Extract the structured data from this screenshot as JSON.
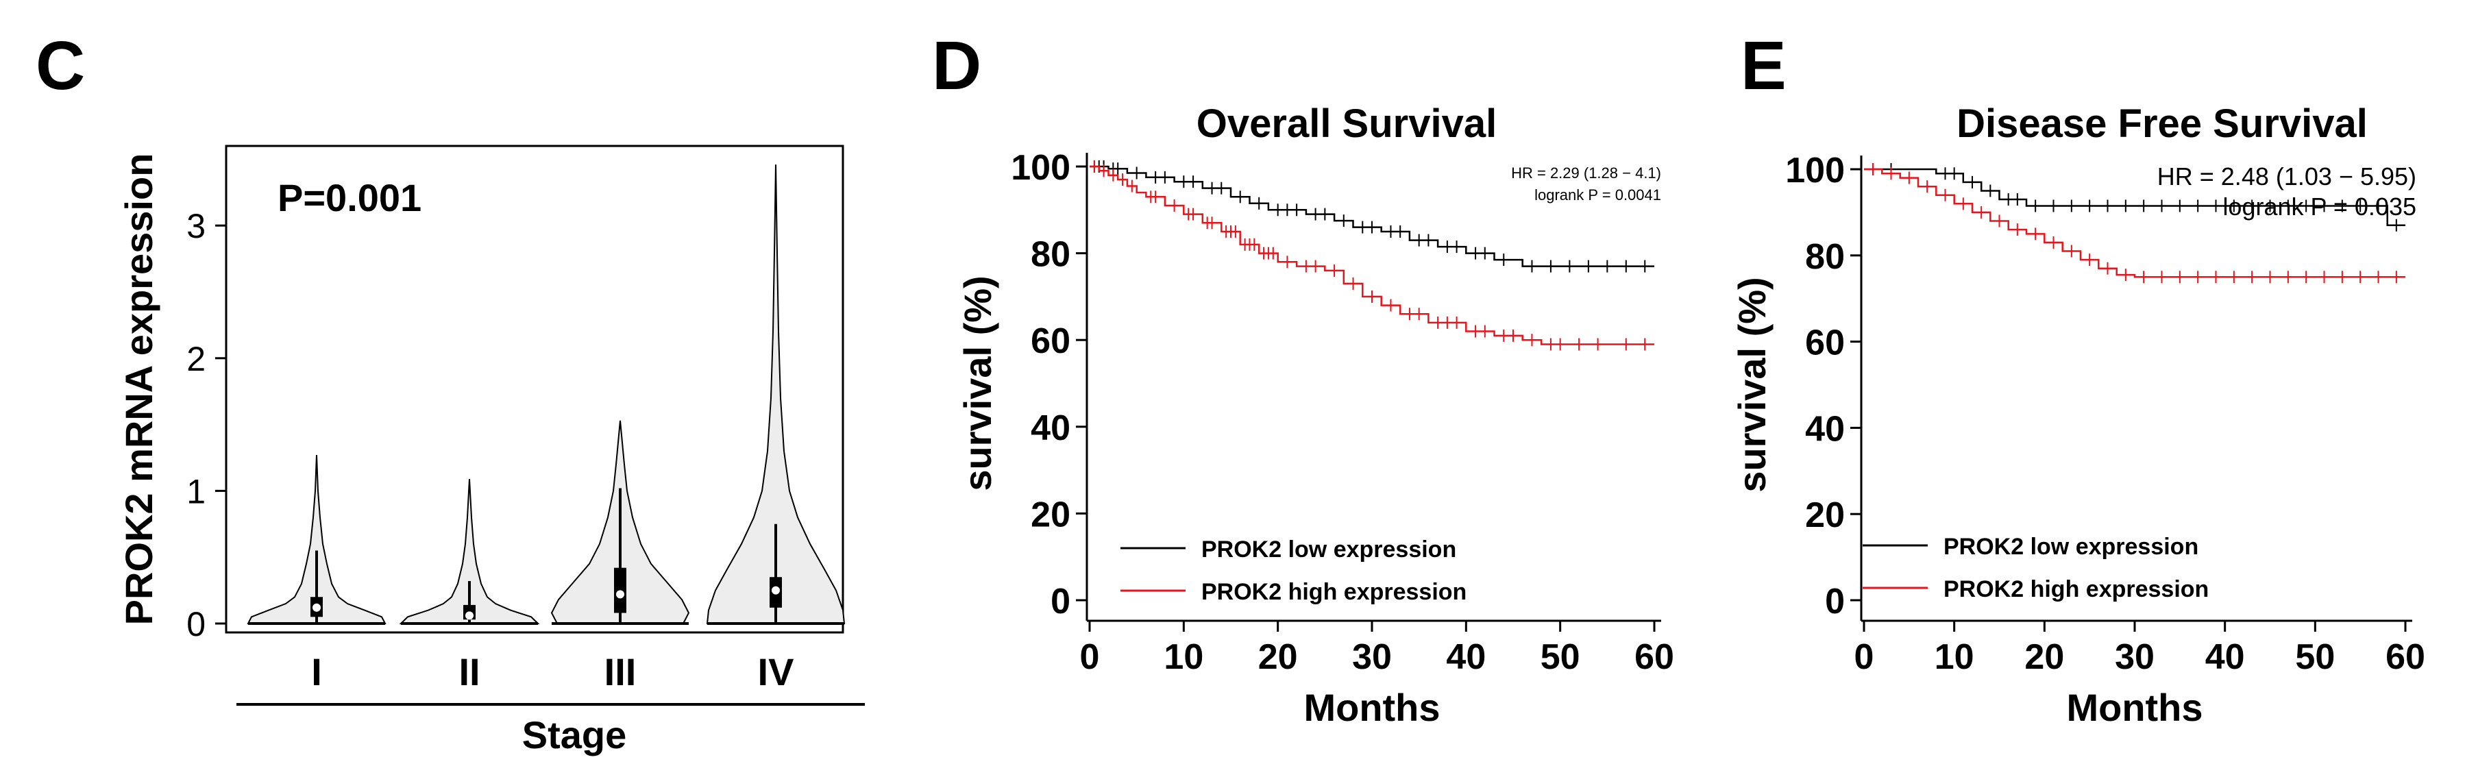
{
  "chart_data": [
    {
      "panel": "C",
      "type": "violin",
      "title": "",
      "annotation": "P=0.001",
      "ylabel": "PROK2 mRNA expression",
      "xlabel": "Stage",
      "ylim": [
        0,
        3.6
      ],
      "yticks": [
        "0",
        "1",
        "2",
        "3"
      ],
      "ytick_values": [
        0,
        1,
        2,
        3
      ],
      "categories": [
        "I",
        "II",
        "III",
        "IV"
      ],
      "violins": [
        {
          "stage": "I",
          "min": 0,
          "max": 1.27,
          "q1": 0.05,
          "median": 0.12,
          "q3": 0.2,
          "whisker_low": 0,
          "whisker_high": 0.55,
          "density": [
            [
              0,
              1.0
            ],
            [
              0.05,
              0.95
            ],
            [
              0.1,
              0.7
            ],
            [
              0.15,
              0.45
            ],
            [
              0.2,
              0.32
            ],
            [
              0.3,
              0.22
            ],
            [
              0.45,
              0.15
            ],
            [
              0.6,
              0.09
            ],
            [
              0.8,
              0.05
            ],
            [
              1.0,
              0.02
            ],
            [
              1.27,
              0
            ]
          ]
        },
        {
          "stage": "II",
          "min": 0,
          "max": 1.09,
          "q1": 0.03,
          "median": 0.06,
          "q3": 0.14,
          "whisker_low": 0,
          "whisker_high": 0.32,
          "density": [
            [
              0,
              1.0
            ],
            [
              0.05,
              0.9
            ],
            [
              0.1,
              0.6
            ],
            [
              0.15,
              0.38
            ],
            [
              0.2,
              0.26
            ],
            [
              0.3,
              0.17
            ],
            [
              0.45,
              0.1
            ],
            [
              0.6,
              0.06
            ],
            [
              0.8,
              0.03
            ],
            [
              1.09,
              0
            ]
          ]
        },
        {
          "stage": "III",
          "min": 0,
          "max": 1.53,
          "q1": 0.08,
          "median": 0.22,
          "q3": 0.42,
          "whisker_low": 0,
          "whisker_high": 1.02,
          "density": [
            [
              0,
              0.92
            ],
            [
              0.08,
              1.0
            ],
            [
              0.18,
              0.9
            ],
            [
              0.3,
              0.7
            ],
            [
              0.45,
              0.45
            ],
            [
              0.6,
              0.3
            ],
            [
              0.8,
              0.18
            ],
            [
              1.0,
              0.1
            ],
            [
              1.2,
              0.06
            ],
            [
              1.53,
              0
            ]
          ]
        },
        {
          "stage": "IV",
          "min": 0,
          "max": 3.46,
          "q1": 0.12,
          "median": 0.25,
          "q3": 0.35,
          "whisker_low": 0,
          "whisker_high": 0.75,
          "density": [
            [
              0,
              1.0
            ],
            [
              0.1,
              0.98
            ],
            [
              0.25,
              0.88
            ],
            [
              0.4,
              0.72
            ],
            [
              0.6,
              0.5
            ],
            [
              0.8,
              0.32
            ],
            [
              1.0,
              0.2
            ],
            [
              1.3,
              0.12
            ],
            [
              1.7,
              0.07
            ],
            [
              2.2,
              0.04
            ],
            [
              2.8,
              0.02
            ],
            [
              3.46,
              0
            ]
          ]
        }
      ]
    },
    {
      "panel": "D",
      "type": "kaplan-meier",
      "title": "Overall Survival",
      "xlabel": "Months",
      "ylabel": "survival (%)",
      "xlim": [
        0,
        60
      ],
      "ylim": [
        0,
        100
      ],
      "xticks": [
        "0",
        "10",
        "20",
        "30",
        "40",
        "50",
        "60"
      ],
      "xtick_values": [
        0,
        10,
        20,
        30,
        40,
        50,
        60
      ],
      "yticks": [
        "0",
        "20",
        "40",
        "60",
        "80",
        "100"
      ],
      "ytick_values": [
        0,
        20,
        40,
        60,
        80,
        100
      ],
      "hr_text": "HR = 2.29 (1.28 − 4.1)",
      "p_text": "logrank P = 0.0041",
      "series": [
        {
          "name": "PROK2 low expression",
          "color": "#000000",
          "steps": [
            [
              0,
              100
            ],
            [
              2,
              99.5
            ],
            [
              4,
              98.5
            ],
            [
              6,
              97.5
            ],
            [
              9,
              96.5
            ],
            [
              12,
              95
            ],
            [
              15,
              93
            ],
            [
              17,
              91.5
            ],
            [
              19,
              90
            ],
            [
              23,
              89
            ],
            [
              26,
              87.5
            ],
            [
              28,
              86
            ],
            [
              31,
              85
            ],
            [
              34,
              83
            ],
            [
              37,
              81.5
            ],
            [
              40,
              80
            ],
            [
              43,
              78.5
            ],
            [
              46,
              77
            ],
            [
              60,
              77
            ]
          ],
          "censors": [
            0.5,
            1,
            1.5,
            2.5,
            3,
            5,
            7,
            8,
            10,
            11,
            13,
            14,
            16,
            18,
            20,
            21,
            22,
            24,
            25,
            27,
            29,
            30,
            32,
            33,
            35,
            36,
            38,
            39,
            41,
            42,
            44,
            47,
            49,
            51,
            53,
            55,
            57,
            59
          ]
        },
        {
          "name": "PROK2 high expression",
          "color": "#e8141c",
          "steps": [
            [
              0,
              100
            ],
            [
              1,
              99
            ],
            [
              2,
              98
            ],
            [
              3,
              97
            ],
            [
              4,
              95.5
            ],
            [
              5,
              94
            ],
            [
              6,
              93
            ],
            [
              8,
              91
            ],
            [
              10,
              89
            ],
            [
              12,
              87
            ],
            [
              14,
              85
            ],
            [
              16,
              82
            ],
            [
              18,
              80
            ],
            [
              20,
              78
            ],
            [
              22,
              77
            ],
            [
              25,
              76
            ],
            [
              27,
              73
            ],
            [
              29,
              70
            ],
            [
              31,
              68
            ],
            [
              33,
              66
            ],
            [
              36,
              64
            ],
            [
              40,
              62
            ],
            [
              43,
              61
            ],
            [
              46,
              60
            ],
            [
              48,
              59
            ],
            [
              60,
              59
            ]
          ],
          "censors": [
            0.5,
            1.5,
            2.5,
            3.5,
            4.5,
            6.5,
            7,
            9,
            10.5,
            11,
            12.5,
            13,
            14.5,
            15,
            15.5,
            16.5,
            17,
            17.5,
            18.5,
            19,
            19.5,
            21,
            23,
            24,
            26,
            28,
            30,
            32,
            34,
            35,
            37,
            38,
            39,
            41,
            42,
            44,
            45,
            47,
            49,
            50,
            52,
            54,
            57,
            59
          ]
        }
      ]
    },
    {
      "panel": "E",
      "type": "kaplan-meier",
      "title": "Disease Free Survival",
      "xlabel": "Months",
      "ylabel": "survival (%)",
      "xlim": [
        0,
        60
      ],
      "ylim": [
        0,
        100
      ],
      "xticks": [
        "0",
        "10",
        "20",
        "30",
        "40",
        "50",
        "60"
      ],
      "xtick_values": [
        0,
        10,
        20,
        30,
        40,
        50,
        60
      ],
      "yticks": [
        "0",
        "20",
        "40",
        "60",
        "80",
        "100"
      ],
      "ytick_values": [
        0,
        20,
        40,
        60,
        80,
        100
      ],
      "hr_text": "HR = 2.48 (1.03 − 5.95)",
      "p_text": "logrank P = 0.035",
      "series": [
        {
          "name": "PROK2 low expression",
          "color": "#000000",
          "steps": [
            [
              0,
              100
            ],
            [
              8,
              99
            ],
            [
              11,
              97
            ],
            [
              13,
              95
            ],
            [
              15,
              93
            ],
            [
              18,
              91.5
            ],
            [
              56,
              91.5
            ],
            [
              58,
              87
            ],
            [
              60,
              87
            ]
          ],
          "censors": [
            1,
            3,
            9,
            10,
            12,
            14,
            16,
            17,
            19,
            21,
            23,
            25,
            27,
            29,
            31,
            33,
            35,
            37,
            39,
            41,
            43,
            45,
            47,
            49,
            51,
            53,
            55,
            57,
            59
          ]
        },
        {
          "name": "PROK2 high expression",
          "color": "#e8141c",
          "steps": [
            [
              0,
              100
            ],
            [
              2,
              99
            ],
            [
              4,
              98
            ],
            [
              6,
              96
            ],
            [
              8,
              94
            ],
            [
              10,
              92
            ],
            [
              12,
              90
            ],
            [
              14,
              88
            ],
            [
              16,
              86
            ],
            [
              18,
              85
            ],
            [
              20,
              83
            ],
            [
              22,
              81
            ],
            [
              24,
              79
            ],
            [
              26,
              77
            ],
            [
              28,
              75.5
            ],
            [
              30,
              75
            ],
            [
              60,
              75
            ]
          ],
          "censors": [
            1,
            3,
            5,
            7,
            9,
            11,
            13,
            15,
            17,
            19,
            21,
            23,
            25,
            27,
            29,
            31,
            33,
            35,
            37,
            39,
            41,
            43,
            45,
            47,
            49,
            51,
            53,
            55,
            57,
            59
          ]
        }
      ]
    }
  ],
  "panels": {
    "c": {
      "letter": "C"
    },
    "d": {
      "letter": "D"
    },
    "e": {
      "letter": "E"
    }
  }
}
